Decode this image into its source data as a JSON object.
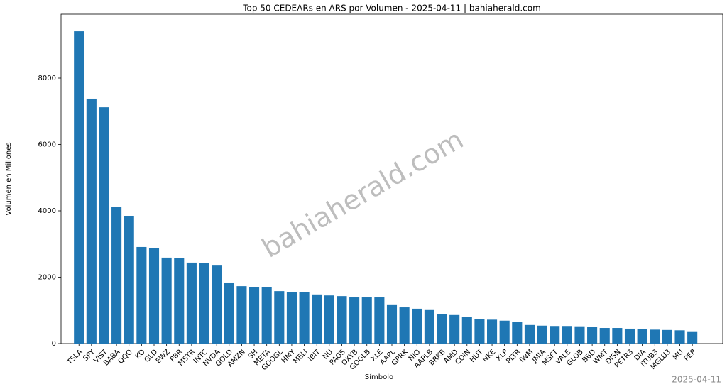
{
  "chart_data": {
    "type": "bar",
    "title": "Top 50 CEDEARs en ARS por Volumen - 2025-04-11 | bahiaherald.com",
    "x_label": "Símbolo",
    "y_label": "Volumen en Millones",
    "watermark": "bahiaherald.com",
    "footer": "2025-04-11",
    "color": "#1f77b4",
    "grid": false,
    "categories": [
      "TSLA",
      "SPY",
      "VIST",
      "BABA",
      "QQQ",
      "KO",
      "GLD",
      "EWZ",
      "PBR",
      "MSTR",
      "INTC",
      "NVDA",
      "GOLD",
      "AMZN",
      "SH",
      "META",
      "GOOGL",
      "HMY",
      "MELI",
      "IBIT",
      "NU",
      "PAGS",
      "OXYB",
      "GOGLB",
      "XLE",
      "AAPL",
      "GPRK",
      "NIO",
      "AAPLB",
      "BRKB",
      "AMD",
      "COIN",
      "HUT",
      "NKE",
      "XLP",
      "PLTR",
      "IWM",
      "JMIA",
      "MSFT",
      "VALE",
      "GLOB",
      "BBD",
      "WMT",
      "DISN",
      "PETR3",
      "DIA",
      "ITUB3",
      "MGLU3",
      "MU",
      "PEP"
    ],
    "values": [
      9410,
      7380,
      7120,
      4110,
      3850,
      2910,
      2870,
      2590,
      2570,
      2440,
      2420,
      2350,
      1840,
      1730,
      1710,
      1690,
      1580,
      1560,
      1560,
      1480,
      1450,
      1430,
      1390,
      1390,
      1390,
      1180,
      1090,
      1050,
      1010,
      880,
      860,
      810,
      730,
      720,
      690,
      660,
      560,
      540,
      530,
      530,
      520,
      510,
      470,
      470,
      450,
      430,
      420,
      410,
      400,
      370
    ],
    "ylim": [
      0,
      9925
    ],
    "yticks": [
      0,
      2000,
      4000,
      6000,
      8000
    ]
  }
}
